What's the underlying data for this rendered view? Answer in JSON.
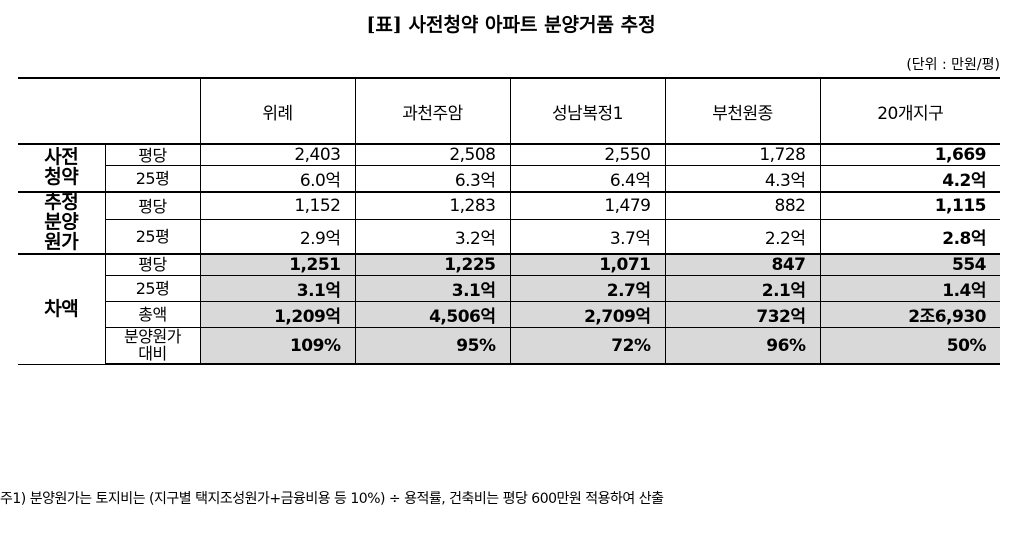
{
  "title": "[표] 사전청약 아파트 분양거품 추정",
  "unit": "(단위 : 만원/평)",
  "table": {
    "header": [
      "위례",
      "과천주암",
      "성남복정1",
      "부천원종",
      "20개지구"
    ],
    "groups": [
      {
        "label": "사전청약",
        "rows": [
          {
            "label": "평당",
            "cells": [
              "2,403",
              "2,508",
              "2,550",
              "1,728",
              "1,669"
            ]
          },
          {
            "label": "25평",
            "cells": [
              "6.0억",
              "6.3억",
              "6.4억",
              "4.3억",
              "4.2억"
            ]
          }
        ]
      },
      {
        "label": "추정분양원가",
        "rows": [
          {
            "label": "평당",
            "cells": [
              "1,152",
              "1,283",
              "1,479",
              "882",
              "1,115"
            ]
          },
          {
            "label": "25평",
            "cells": [
              "2.9억",
              "3.2억",
              "3.7억",
              "2.2억",
              "2.8억"
            ]
          }
        ]
      },
      {
        "label": "차액",
        "rows": [
          {
            "label": "평당",
            "cells": [
              "1,251",
              "1,225",
              "1,071",
              "847",
              "554"
            ]
          },
          {
            "label": "25평",
            "cells": [
              "3.1억",
              "3.1억",
              "2.7억",
              "2.1억",
              "1.4억"
            ]
          },
          {
            "label": "총액",
            "cells": [
              "1,209억",
              "4,506억",
              "2,709억",
              "732억",
              "2조6,930"
            ]
          },
          {
            "label": "분양원가대비",
            "cells": [
              "109%",
              "95%",
              "72%",
              "96%",
              "50%"
            ]
          }
        ]
      }
    ]
  },
  "footnote": "주1) 분양원가는 토지비는 (지구별 택지조성원가+금융비용 등 10%) ÷ 용적률, 건축비는 평당 600만원 적용하여 산출"
}
